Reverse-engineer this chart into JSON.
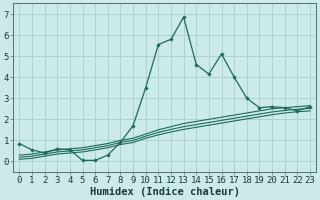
{
  "xlabel": "Humidex (Indice chaleur)",
  "bg_color": "#cceae7",
  "grid_color": "#aad4cf",
  "line_color": "#1a6b5a",
  "xlim": [
    -0.5,
    23.5
  ],
  "ylim": [
    -0.5,
    7.5
  ],
  "xticks": [
    0,
    1,
    2,
    3,
    4,
    5,
    6,
    7,
    8,
    9,
    10,
    11,
    12,
    13,
    14,
    15,
    16,
    17,
    18,
    19,
    20,
    21,
    22,
    23
  ],
  "yticks": [
    0,
    1,
    2,
    3,
    4,
    5,
    6,
    7
  ],
  "line1_x": [
    0,
    1,
    2,
    3,
    4,
    5,
    6,
    7,
    8,
    9,
    10,
    11,
    12,
    13,
    14,
    15,
    16,
    17,
    18,
    19,
    20,
    21,
    22,
    23
  ],
  "line1_y": [
    0.85,
    0.55,
    0.4,
    0.6,
    0.55,
    0.05,
    0.05,
    0.3,
    0.9,
    1.7,
    3.5,
    5.55,
    5.8,
    6.85,
    4.6,
    4.15,
    5.1,
    4.0,
    3.0,
    2.55,
    2.6,
    2.55,
    2.4,
    2.6
  ],
  "line2_x": [
    0,
    1,
    2,
    3,
    4,
    5,
    6,
    7,
    8,
    9,
    10,
    11,
    12,
    13,
    14,
    15,
    16,
    17,
    18,
    19,
    20,
    21,
    22,
    23
  ],
  "line2_y": [
    0.3,
    0.35,
    0.45,
    0.55,
    0.6,
    0.65,
    0.75,
    0.85,
    1.0,
    1.1,
    1.3,
    1.5,
    1.65,
    1.8,
    1.9,
    2.0,
    2.1,
    2.2,
    2.3,
    2.4,
    2.5,
    2.55,
    2.6,
    2.65
  ],
  "line3_x": [
    0,
    1,
    2,
    3,
    4,
    5,
    6,
    7,
    8,
    9,
    10,
    11,
    12,
    13,
    14,
    15,
    16,
    17,
    18,
    19,
    20,
    21,
    22,
    23
  ],
  "line3_y": [
    0.2,
    0.25,
    0.35,
    0.45,
    0.5,
    0.55,
    0.65,
    0.75,
    0.9,
    1.0,
    1.2,
    1.38,
    1.52,
    1.65,
    1.75,
    1.85,
    1.95,
    2.05,
    2.15,
    2.25,
    2.35,
    2.42,
    2.48,
    2.52
  ],
  "line4_x": [
    0,
    1,
    2,
    3,
    4,
    5,
    6,
    7,
    8,
    9,
    10,
    11,
    12,
    13,
    14,
    15,
    16,
    17,
    18,
    19,
    20,
    21,
    22,
    23
  ],
  "line4_y": [
    0.1,
    0.15,
    0.25,
    0.35,
    0.4,
    0.45,
    0.55,
    0.65,
    0.8,
    0.9,
    1.1,
    1.26,
    1.4,
    1.52,
    1.62,
    1.72,
    1.82,
    1.92,
    2.02,
    2.12,
    2.22,
    2.3,
    2.36,
    2.4
  ],
  "font_size_xlabel": 7.5,
  "font_size_ticks": 6.5
}
